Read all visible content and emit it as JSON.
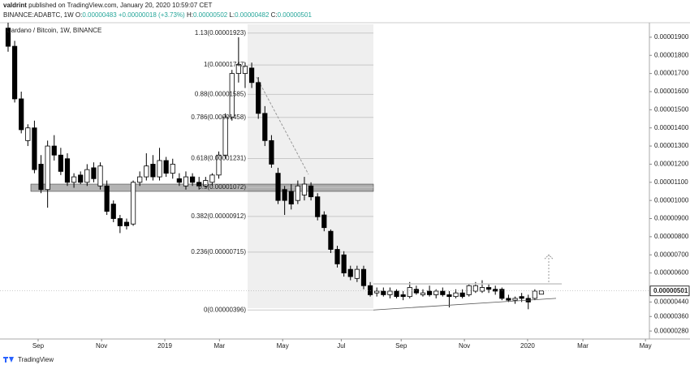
{
  "header": {
    "author": "valdrint",
    "published": "published on TradingView.com, January 20, 2020 10:59:07 CET",
    "symbol": "BINANCE:ADABTC, 1W",
    "ohlc_legend": [
      {
        "label": "O:",
        "value": "0.00000483"
      },
      {
        "label": "H:",
        "value": "0.00000502"
      },
      {
        "label": "L:",
        "value": "0.00000482"
      },
      {
        "label": "C:",
        "value": "0.00000501"
      }
    ],
    "change": "+0.00000018 (+3.73%)"
  },
  "chart_data": {
    "type": "candlestick",
    "title": "Cardano / Bitcoin, 1W, BINANCE",
    "up_color": "#ffffff",
    "down_color": "#000000",
    "border_color": "#000000",
    "open": [
      1.95e-05,
      1.85e-05,
      1.56e-05,
      1.33e-05,
      1.4e-05,
      1.2e-05,
      1.06e-05,
      1.3e-05,
      1.25e-05,
      1.23e-05,
      1.1e-05,
      1.14e-05,
      1.1e-05,
      1.18e-05,
      1.08e-05,
      1.08e-05,
      9.8e-06,
      9e-06,
      8.8e-06,
      8.7e-06,
      1.1e-05,
      1.13e-05,
      1.2e-05,
      1.13e-05,
      1.22e-05,
      1.15e-05,
      1.12e-05,
      1.08e-05,
      1.13e-05,
      1.1e-05,
      1.08e-05,
      1.1e-05,
      1.14e-05,
      1.25e-05,
      1.46e-05,
      1.7e-05,
      1.7e-05,
      1.73e-05,
      1.65e-05,
      1.48e-05,
      1.33e-05,
      1.15e-05,
      1.06e-05,
      1.05e-05,
      1e-05,
      1.03e-05,
      1.08e-05,
      1.02e-05,
      9.2e-06,
      8.3e-06,
      7.3e-06,
      7e-06,
      6.2e-06,
      5.7e-06,
      6.2e-06,
      5.3e-06,
      4.9e-06,
      5e-06,
      4.8e-06,
      5e-06,
      4.8e-06,
      4.7e-06,
      5.1e-06,
      4.8e-06,
      5e-06,
      4.8e-06,
      5e-06,
      4.8e-06,
      4.7e-06,
      4.9e-06,
      4.8e-06,
      5e-06,
      5e-06,
      5.2e-06,
      5.1e-06,
      5.1e-06,
      4.6e-06,
      4.5e-06,
      4.7e-06,
      4.6e-06,
      4.6e-06,
      4.83e-06
    ],
    "high": [
      2e-05,
      1.88e-05,
      1.6e-05,
      1.42e-05,
      1.44e-05,
      1.25e-05,
      1.33e-05,
      1.36e-05,
      1.29e-05,
      1.26e-05,
      1.15e-05,
      1.16e-05,
      1.2e-05,
      1.21e-05,
      1.21e-05,
      1.11e-05,
      1e-05,
      9.2e-06,
      9e-06,
      1.11e-05,
      1.16e-05,
      1.26e-05,
      1.25e-05,
      1.29e-05,
      1.24e-05,
      1.23e-05,
      1.15e-05,
      1.16e-05,
      1.15e-05,
      1.13e-05,
      1.13e-05,
      1.15e-05,
      1.27e-05,
      1.48e-05,
      1.72e-05,
      1.9e-05,
      1.76e-05,
      1.76e-05,
      1.68e-05,
      1.52e-05,
      1.36e-05,
      1.18e-05,
      1.08e-05,
      1.09e-05,
      1.11e-05,
      1.13e-05,
      1.1e-05,
      1.04e-05,
      9.4e-06,
      8.4e-06,
      7.5e-06,
      7.2e-06,
      6.4e-06,
      6.4e-06,
      6.4e-06,
      5.5e-06,
      5.2e-06,
      5.2e-06,
      5.2e-06,
      5.1e-06,
      5e-06,
      5.5e-06,
      5.3e-06,
      5.1e-06,
      5.3e-06,
      5.1e-06,
      5.2e-06,
      5e-06,
      5.1e-06,
      5.1e-06,
      5.4e-06,
      5.5e-06,
      5.6e-06,
      5.4e-06,
      5.3e-06,
      5.2e-06,
      4.8e-06,
      4.7e-06,
      4.9e-06,
      4.8e-06,
      5.1e-06,
      5.02e-06
    ],
    "low": [
      1.82e-05,
      1.54e-05,
      1.37e-05,
      1.3e-05,
      1.15e-05,
      1.04e-05,
      9.6e-06,
      1.22e-05,
      1.14e-05,
      1.08e-05,
      1.07e-05,
      1.09e-05,
      1.08e-05,
      1.1e-05,
      1.06e-05,
      9.2e-06,
      8.8e-06,
      8.2e-06,
      8.4e-06,
      8.6e-06,
      1.08e-05,
      1.11e-05,
      1.11e-05,
      1.11e-05,
      1.13e-05,
      1.12e-05,
      1.08e-05,
      1.06e-05,
      1.08e-05,
      1.06e-05,
      1.07e-05,
      1.08e-05,
      1.12e-05,
      1.23e-05,
      1.44e-05,
      1.65e-05,
      1.62e-05,
      1.62e-05,
      1.45e-05,
      1.3e-05,
      1.18e-05,
      9.8e-06,
      9.2e-06,
      9.5e-06,
      9.8e-06,
      1e-05,
      1e-05,
      8.9e-06,
      8.3e-06,
      7.1e-06,
      6.3e-06,
      5.8e-06,
      5.6e-06,
      5.5e-06,
      5.1e-06,
      4.7e-06,
      4.7e-06,
      4.7e-06,
      4.6e-06,
      4.6e-06,
      4.5e-06,
      4.6e-06,
      4.8e-06,
      4.7e-06,
      4.7e-06,
      4.6e-06,
      4.7e-06,
      4.1e-06,
      4.6e-06,
      4.6e-06,
      4.7e-06,
      4.9e-06,
      4.9e-06,
      4.9e-06,
      4.8e-06,
      4.5e-06,
      4.4e-06,
      4.3e-06,
      4.4e-06,
      4e-06,
      4.5e-06,
      4.82e-06
    ],
    "close": [
      1.85e-05,
      1.56e-05,
      1.39e-05,
      1.4e-05,
      1.17e-05,
      1.06e-05,
      1.3e-05,
      1.25e-05,
      1.16e-05,
      1.1e-05,
      1.13e-05,
      1.1e-05,
      1.17e-05,
      1.12e-05,
      1.19e-05,
      9.4e-06,
      9e-06,
      8.6e-06,
      8.6e-06,
      1.1e-05,
      1.13e-05,
      1.19e-05,
      1.13e-05,
      1.22e-05,
      1.15e-05,
      1.2e-05,
      1.1e-05,
      1.13e-05,
      1.1e-05,
      1.08e-05,
      1.11e-05,
      1.14e-05,
      1.25e-05,
      1.46e-05,
      1.7e-05,
      1.75e-05,
      1.74e-05,
      1.65e-05,
      1.48e-05,
      1.33e-05,
      1.2e-05,
      1e-05,
      1e-05,
      9.8e-06,
      1.08e-05,
      1.09e-05,
      1.02e-05,
      9.1e-06,
      8.5e-06,
      7.3e-06,
      6.5e-06,
      6e-06,
      5.8e-06,
      6.2e-06,
      5.3e-06,
      4.8e-06,
      5e-06,
      4.8e-06,
      5e-06,
      4.7e-06,
      4.7e-06,
      5.2e-06,
      4.9e-06,
      4.9e-06,
      4.8e-06,
      5e-06,
      4.8e-06,
      4.7e-06,
      4.9e-06,
      4.7e-06,
      5.3e-06,
      5.3e-06,
      5.2e-06,
      5.1e-06,
      5e-06,
      4.6e-06,
      4.5e-06,
      4.6e-06,
      4.6e-06,
      4.4e-06,
      5e-06,
      5.01e-06
    ],
    "xlim": [
      -1.23,
      97.4
    ],
    "xticks": [
      {
        "value": 4.56,
        "label": "Sep"
      },
      {
        "value": 14.2,
        "label": "Nov"
      },
      {
        "value": 23.8,
        "label": "2019"
      },
      {
        "value": 32.1,
        "label": "Mar"
      },
      {
        "value": 41.7,
        "label": "May"
      },
      {
        "value": 50.6,
        "label": "Jul"
      },
      {
        "value": 59.7,
        "label": "Sep"
      },
      {
        "value": 69.3,
        "label": "Nov"
      },
      {
        "value": 78.9,
        "label": "2020"
      },
      {
        "value": 87.3,
        "label": "Mar"
      },
      {
        "value": 96.8,
        "label": "May"
      }
    ],
    "ylim": [
      2.36e-06,
      1.98e-05
    ],
    "yticks": [
      {
        "value": 1.9e-05,
        "label": "0.00001900"
      },
      {
        "value": 1.8e-05,
        "label": "0.00001800"
      },
      {
        "value": 1.7e-05,
        "label": "0.00001700"
      },
      {
        "value": 1.6e-05,
        "label": "0.00001600"
      },
      {
        "value": 1.5e-05,
        "label": "0.00001500"
      },
      {
        "value": 1.4e-05,
        "label": "0.00001400"
      },
      {
        "value": 1.3e-05,
        "label": "0.00001300"
      },
      {
        "value": 1.2e-05,
        "label": "0.00001200"
      },
      {
        "value": 1.1e-05,
        "label": "0.00001100"
      },
      {
        "value": 1e-05,
        "label": "0.00001000"
      },
      {
        "value": 9e-06,
        "label": "0.00000900"
      },
      {
        "value": 8e-06,
        "label": "0.00000800"
      },
      {
        "value": 7e-06,
        "label": "0.00000700"
      },
      {
        "value": 6e-06,
        "label": "0.00000600"
      },
      {
        "value": 4.4e-06,
        "label": "0.00000440"
      },
      {
        "value": 3.6e-06,
        "label": "0.00000360"
      },
      {
        "value": 2.8e-06,
        "label": "0.00000280"
      }
    ],
    "last_price": {
      "value": 5.01e-06,
      "label": "0.00000501"
    },
    "fib_levels": [
      {
        "value": 1.923e-05,
        "label": "1.13(0.00001923)"
      },
      {
        "value": 1.747e-05,
        "label": "1(0.00001747)"
      },
      {
        "value": 1.585e-05,
        "label": "0.88(0.00001585)"
      },
      {
        "value": 1.458e-05,
        "label": "0.786(0.00001458)"
      },
      {
        "value": 1.231e-05,
        "label": "0.618(0.00001231)"
      },
      {
        "value": 1.072e-05,
        "label": "0.5(0.00001072)"
      },
      {
        "value": 9.12e-06,
        "label": "0.382(0.00000912)"
      },
      {
        "value": 7.15e-06,
        "label": "0.236(0.00000715)"
      },
      {
        "value": 3.96e-06,
        "label": "0(0.00000396)"
      }
    ],
    "zone": [
      1.05e-05,
      1.09e-05
    ],
    "resistance": 5.4e-06,
    "support": [
      3.96e-06,
      4.6e-06
    ],
    "target": 7e-06
  },
  "footer": {
    "brand": "TradingView"
  }
}
